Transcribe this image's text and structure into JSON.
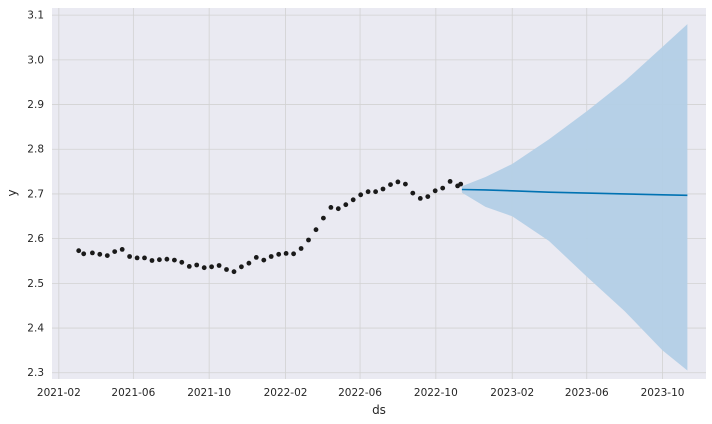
{
  "chart_data": {
    "type": "line",
    "xlabel": "ds",
    "ylabel": "y",
    "x_type": "date",
    "xlim": [
      "2021-01-21",
      "2023-12-10"
    ],
    "ylim": [
      2.286,
      3.116
    ],
    "grid": true,
    "xticks": [
      {
        "label": "2021-02",
        "date": "2021-02-01"
      },
      {
        "label": "2021-06",
        "date": "2021-06-01"
      },
      {
        "label": "2021-10",
        "date": "2021-10-01"
      },
      {
        "label": "2022-02",
        "date": "2022-02-01"
      },
      {
        "label": "2022-06",
        "date": "2022-06-01"
      },
      {
        "label": "2022-10",
        "date": "2022-10-01"
      },
      {
        "label": "2023-02",
        "date": "2023-02-01"
      },
      {
        "label": "2023-06",
        "date": "2023-06-01"
      },
      {
        "label": "2023-10",
        "date": "2023-10-01"
      }
    ],
    "yticks": [
      2.3,
      2.4,
      2.5,
      2.6,
      2.7,
      2.8,
      2.9,
      3.0,
      3.1
    ],
    "ytick_labels": [
      "2.3",
      "2.4",
      "2.5",
      "2.6",
      "2.7",
      "2.8",
      "2.9",
      "3.0",
      "3.1"
    ],
    "observed": [
      [
        "2021-03-05",
        2.573
      ],
      [
        "2021-03-13",
        2.566
      ],
      [
        "2021-03-27",
        2.568
      ],
      [
        "2021-04-08",
        2.565
      ],
      [
        "2021-04-20",
        2.562
      ],
      [
        "2021-05-02",
        2.571
      ],
      [
        "2021-05-14",
        2.576
      ],
      [
        "2021-05-26",
        2.56
      ],
      [
        "2021-06-07",
        2.557
      ],
      [
        "2021-06-19",
        2.557
      ],
      [
        "2021-07-01",
        2.551
      ],
      [
        "2021-07-13",
        2.553
      ],
      [
        "2021-07-25",
        2.554
      ],
      [
        "2021-08-06",
        2.552
      ],
      [
        "2021-08-18",
        2.547
      ],
      [
        "2021-08-30",
        2.538
      ],
      [
        "2021-09-11",
        2.541
      ],
      [
        "2021-09-23",
        2.535
      ],
      [
        "2021-10-05",
        2.537
      ],
      [
        "2021-10-17",
        2.54
      ],
      [
        "2021-10-29",
        2.531
      ],
      [
        "2021-11-10",
        2.526
      ],
      [
        "2021-11-22",
        2.537
      ],
      [
        "2021-12-04",
        2.545
      ],
      [
        "2021-12-16",
        2.558
      ],
      [
        "2021-12-28",
        2.552
      ],
      [
        "2022-01-09",
        2.56
      ],
      [
        "2022-01-21",
        2.565
      ],
      [
        "2022-02-02",
        2.567
      ],
      [
        "2022-02-14",
        2.566
      ],
      [
        "2022-02-26",
        2.578
      ],
      [
        "2022-03-10",
        2.597
      ],
      [
        "2022-03-22",
        2.62
      ],
      [
        "2022-04-03",
        2.646
      ],
      [
        "2022-04-15",
        2.67
      ],
      [
        "2022-04-27",
        2.667
      ],
      [
        "2022-05-09",
        2.676
      ],
      [
        "2022-05-21",
        2.687
      ],
      [
        "2022-06-02",
        2.698
      ],
      [
        "2022-06-14",
        2.705
      ],
      [
        "2022-06-26",
        2.705
      ],
      [
        "2022-07-08",
        2.711
      ],
      [
        "2022-07-20",
        2.721
      ],
      [
        "2022-08-01",
        2.727
      ],
      [
        "2022-08-13",
        2.722
      ],
      [
        "2022-08-25",
        2.702
      ],
      [
        "2022-09-06",
        2.69
      ],
      [
        "2022-09-18",
        2.694
      ],
      [
        "2022-09-30",
        2.707
      ],
      [
        "2022-10-12",
        2.713
      ],
      [
        "2022-10-24",
        2.728
      ],
      [
        "2022-11-05",
        2.718
      ],
      [
        "2022-11-10",
        2.722
      ]
    ],
    "forecast": [
      [
        "2022-11-12",
        2.71,
        2.703,
        2.717
      ],
      [
        "2022-12-20",
        2.709,
        2.671,
        2.738
      ],
      [
        "2023-02-01",
        2.707,
        2.65,
        2.767
      ],
      [
        "2023-04-01",
        2.704,
        2.595,
        2.822
      ],
      [
        "2023-06-01",
        2.702,
        2.515,
        2.885
      ],
      [
        "2023-08-01",
        2.7,
        2.438,
        2.952
      ],
      [
        "2023-10-01",
        2.698,
        2.35,
        3.029
      ],
      [
        "2023-11-10",
        2.697,
        2.305,
        3.08
      ]
    ],
    "colors": {
      "observed": "#1a1a1a",
      "forecast_line": "#0072b2",
      "interval": "#b3cfe6",
      "background": "#eaeaf2",
      "grid": "#d2d2d2"
    }
  }
}
